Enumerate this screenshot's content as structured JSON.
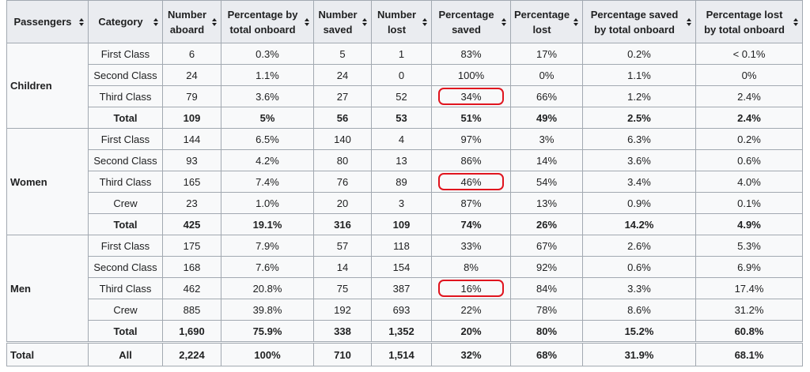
{
  "table": {
    "headers": [
      "Passengers",
      "Category",
      "Number aboard",
      "Percentage by total onboard",
      "Number saved",
      "Number lost",
      "Percentage saved",
      "Percentage lost",
      "Percentage saved by total onboard",
      "Percentage lost by total onboard"
    ],
    "groups": [
      {
        "label": "Children",
        "rows": [
          [
            "First Class",
            "6",
            "0.3%",
            "5",
            "1",
            "83%",
            "17%",
            "0.2%",
            "< 0.1%"
          ],
          [
            "Second Class",
            "24",
            "1.1%",
            "24",
            "0",
            "100%",
            "0%",
            "1.1%",
            "0%"
          ],
          [
            "Third Class",
            "79",
            "3.6%",
            "27",
            "52",
            "34%",
            "66%",
            "1.2%",
            "2.4%"
          ],
          [
            "Total",
            "109",
            "5%",
            "56",
            "53",
            "51%",
            "49%",
            "2.5%",
            "2.4%"
          ]
        ]
      },
      {
        "label": "Women",
        "rows": [
          [
            "First Class",
            "144",
            "6.5%",
            "140",
            "4",
            "97%",
            "3%",
            "6.3%",
            "0.2%"
          ],
          [
            "Second Class",
            "93",
            "4.2%",
            "80",
            "13",
            "86%",
            "14%",
            "3.6%",
            "0.6%"
          ],
          [
            "Third Class",
            "165",
            "7.4%",
            "76",
            "89",
            "46%",
            "54%",
            "3.4%",
            "4.0%"
          ],
          [
            "Crew",
            "23",
            "1.0%",
            "20",
            "3",
            "87%",
            "13%",
            "0.9%",
            "0.1%"
          ],
          [
            "Total",
            "425",
            "19.1%",
            "316",
            "109",
            "74%",
            "26%",
            "14.2%",
            "4.9%"
          ]
        ]
      },
      {
        "label": "Men",
        "rows": [
          [
            "First Class",
            "175",
            "7.9%",
            "57",
            "118",
            "33%",
            "67%",
            "2.6%",
            "5.3%"
          ],
          [
            "Second Class",
            "168",
            "7.6%",
            "14",
            "154",
            "8%",
            "92%",
            "0.6%",
            "6.9%"
          ],
          [
            "Third Class",
            "462",
            "20.8%",
            "75",
            "387",
            "16%",
            "84%",
            "3.3%",
            "17.4%"
          ],
          [
            "Crew",
            "885",
            "39.8%",
            "192",
            "693",
            "22%",
            "78%",
            "8.6%",
            "31.2%"
          ],
          [
            "Total",
            "1,690",
            "75.9%",
            "338",
            "1,352",
            "20%",
            "80%",
            "15.2%",
            "60.8%"
          ]
        ]
      }
    ],
    "total": {
      "label": "Total",
      "cells": [
        "All",
        "2,224",
        "100%",
        "710",
        "1,514",
        "32%",
        "68%",
        "31.9%",
        "68.1%"
      ]
    }
  }
}
